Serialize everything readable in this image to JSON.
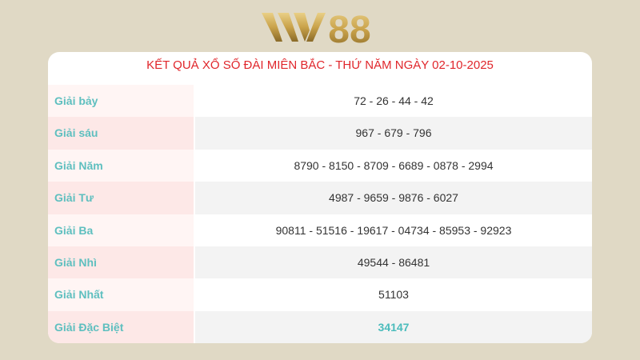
{
  "logo": {
    "text": "W88",
    "color": "#c9a24a"
  },
  "table": {
    "title": "KẾT QUẢ XỔ SỐ ĐÀI MIÊN BẮC - THỨ NĂM NGÀY 02-10-2025",
    "rows": [
      {
        "label": "Giải bảy",
        "value": "72 - 26 - 44 - 42"
      },
      {
        "label": "Giải sáu",
        "value": "967 - 679 - 796"
      },
      {
        "label": "Giải Năm",
        "value": "8790 - 8150 - 8709 - 6689 - 0878 - 2994"
      },
      {
        "label": "Giải Tư",
        "value": "4987 - 9659 - 9876 - 6027"
      },
      {
        "label": "Giải Ba",
        "value": "90811 - 51516 - 19617 - 04734 - 85953 - 92923"
      },
      {
        "label": "Giải Nhì",
        "value": "49544 - 86481"
      },
      {
        "label": "Giải Nhất",
        "value": "51103"
      },
      {
        "label": "Giải Đặc Biệt",
        "value": "34147"
      }
    ]
  }
}
